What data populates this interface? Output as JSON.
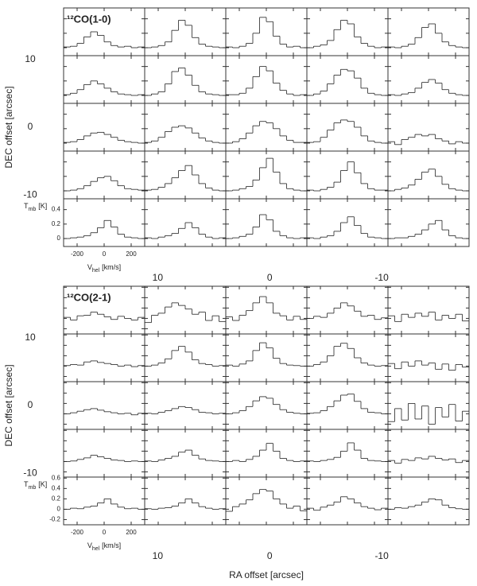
{
  "chart_data": [
    {
      "type": "spectra-grid",
      "label": "¹²CO(1-0)",
      "ylabel": "DEC offset [arcsec]",
      "color": "#222",
      "x": [
        -275,
        -225,
        -175,
        -125,
        -75,
        -25,
        25,
        75,
        125,
        175,
        225,
        275
      ],
      "xlim": [
        -300,
        300
      ],
      "xticks": [
        -200,
        0,
        200
      ],
      "ylim": [
        -0.11,
        0.55
      ],
      "yticks": [
        0,
        0.2,
        0.4
      ],
      "xunit": {
        "symbol": "V",
        "sub": "hel",
        "unit": "[km/s]"
      },
      "yunit": {
        "symbol": "T",
        "sub": "mb",
        "unit": "[K]"
      },
      "ra_lim": [
        18.4,
        -17.8
      ],
      "ra_ticks": [
        10,
        0,
        -10
      ],
      "dec_lim": [
        -17.6,
        17.6
      ],
      "dec_ticks": [
        10,
        0,
        -10
      ],
      "spectra": [
        [
          [
            0.01,
            0.02,
            0.06,
            0.15,
            0.22,
            0.17,
            0.08,
            0.03,
            0.01,
            0.02,
            0.0,
            0.01
          ],
          [
            0.0,
            0.01,
            0.03,
            0.08,
            0.24,
            0.38,
            0.31,
            0.14,
            0.05,
            0.02,
            0.01,
            0.0
          ],
          [
            0.01,
            0.0,
            0.02,
            0.06,
            0.2,
            0.42,
            0.36,
            0.16,
            0.05,
            0.01,
            0.02,
            0.0
          ],
          [
            0.0,
            0.02,
            0.04,
            0.1,
            0.25,
            0.38,
            0.33,
            0.15,
            0.06,
            0.02,
            0.0,
            0.01
          ],
          [
            0.01,
            0.0,
            0.02,
            0.05,
            0.14,
            0.28,
            0.33,
            0.2,
            0.08,
            0.03,
            0.01,
            0.0
          ]
        ],
        [
          [
            0.01,
            0.03,
            0.08,
            0.15,
            0.2,
            0.16,
            0.1,
            0.05,
            0.02,
            0.01,
            0.0,
            0.01
          ],
          [
            0.0,
            0.02,
            0.05,
            0.16,
            0.33,
            0.38,
            0.28,
            0.14,
            0.05,
            0.02,
            0.01,
            0.0
          ],
          [
            0.01,
            0.01,
            0.03,
            0.1,
            0.26,
            0.4,
            0.34,
            0.17,
            0.07,
            0.02,
            0.0,
            0.01
          ],
          [
            0.0,
            0.02,
            0.06,
            0.16,
            0.28,
            0.36,
            0.34,
            0.24,
            0.1,
            0.03,
            0.01,
            0.0
          ],
          [
            0.01,
            0.0,
            0.02,
            0.04,
            0.1,
            0.18,
            0.22,
            0.17,
            0.08,
            0.03,
            0.01,
            0.0
          ]
        ],
        [
          [
            0.01,
            0.02,
            0.05,
            0.1,
            0.14,
            0.15,
            0.12,
            0.08,
            0.04,
            0.02,
            0.01,
            0.0
          ],
          [
            0.01,
            0.03,
            0.08,
            0.16,
            0.22,
            0.24,
            0.21,
            0.14,
            0.07,
            0.03,
            0.01,
            0.0
          ],
          [
            0.0,
            0.02,
            0.06,
            0.14,
            0.24,
            0.3,
            0.28,
            0.2,
            0.1,
            0.04,
            0.01,
            0.01
          ],
          [
            0.01,
            0.02,
            0.08,
            0.18,
            0.28,
            0.32,
            0.3,
            0.22,
            0.1,
            0.03,
            0.01,
            0.0
          ],
          [
            0.02,
            -0.02,
            0.05,
            0.08,
            0.12,
            0.1,
            0.12,
            0.06,
            0.03,
            -0.01,
            0.02,
            0.0
          ]
        ],
        [
          [
            0.0,
            0.01,
            0.03,
            0.07,
            0.13,
            0.18,
            0.2,
            0.14,
            0.07,
            0.03,
            0.02,
            0.01
          ],
          [
            0.01,
            0.02,
            0.05,
            0.1,
            0.18,
            0.28,
            0.35,
            0.22,
            0.1,
            0.04,
            0.01,
            0.0
          ],
          [
            0.0,
            0.01,
            0.03,
            0.06,
            0.15,
            0.32,
            0.45,
            0.26,
            0.1,
            0.03,
            0.01,
            0.0
          ],
          [
            0.01,
            0.0,
            0.02,
            0.05,
            0.12,
            0.28,
            0.4,
            0.25,
            0.1,
            0.03,
            0.01,
            0.01
          ],
          [
            0.0,
            0.02,
            0.04,
            0.08,
            0.16,
            0.26,
            0.3,
            0.2,
            0.09,
            0.03,
            0.01,
            0.0
          ]
        ],
        [
          [
            0.0,
            0.01,
            0.02,
            0.04,
            0.08,
            0.15,
            0.25,
            0.16,
            0.06,
            0.02,
            0.01,
            0.0
          ],
          [
            0.01,
            0.0,
            0.02,
            0.04,
            0.07,
            0.14,
            0.22,
            0.15,
            0.06,
            0.02,
            0.0,
            0.01
          ],
          [
            0.0,
            0.01,
            0.03,
            0.06,
            0.16,
            0.33,
            0.26,
            0.1,
            0.04,
            0.01,
            0.0,
            0.01
          ],
          [
            0.01,
            0.0,
            0.02,
            0.04,
            0.1,
            0.22,
            0.3,
            0.18,
            0.07,
            0.02,
            0.01,
            0.0
          ],
          [
            0.0,
            0.01,
            0.01,
            0.03,
            0.06,
            0.12,
            0.2,
            0.25,
            0.12,
            0.04,
            0.01,
            0.0
          ]
        ]
      ]
    },
    {
      "type": "spectra-grid",
      "label": "¹²CO(2-1)",
      "ylabel": "DEC offset [arcsec]",
      "xlabel": "RA offset [arcsec]",
      "color": "#222",
      "x": [
        -275,
        -225,
        -175,
        -125,
        -75,
        -25,
        25,
        75,
        125,
        175,
        225,
        275
      ],
      "xlim": [
        -300,
        300
      ],
      "xticks": [
        -200,
        0,
        200
      ],
      "ylim": [
        -0.3,
        0.62
      ],
      "yticks": [
        -0.2,
        0,
        0.2,
        0.4,
        0.6
      ],
      "xunit": {
        "symbol": "V",
        "sub": "hel",
        "unit": "[km/s]"
      },
      "yunit": {
        "symbol": "T",
        "sub": "mb",
        "unit": "[K]"
      },
      "ra_lim": [
        18.4,
        -17.8
      ],
      "ra_ticks": [
        10,
        0,
        -10
      ],
      "dec_lim": [
        -17.6,
        17.6
      ],
      "dec_ticks": [
        10,
        0,
        -10
      ],
      "spectra": [
        [
          [
            0.02,
            -0.03,
            0.05,
            0.06,
            0.12,
            0.08,
            0.03,
            -0.02,
            0.04,
            0.0,
            -0.03,
            0.02
          ],
          [
            -0.08,
            0.06,
            0.1,
            0.22,
            0.3,
            0.25,
            0.18,
            0.08,
            0.12,
            -0.04,
            0.05,
            -0.06
          ],
          [
            0.03,
            -0.04,
            0.06,
            0.15,
            0.3,
            0.42,
            0.3,
            0.1,
            0.05,
            -0.03,
            0.04,
            -0.02
          ],
          [
            0.0,
            0.04,
            0.02,
            0.1,
            0.2,
            0.3,
            0.24,
            0.14,
            0.04,
            0.06,
            -0.02,
            0.01
          ],
          [
            0.05,
            -0.06,
            0.08,
            0.02,
            0.1,
            0.04,
            0.12,
            -0.03,
            0.06,
            0.0,
            0.08,
            -0.05
          ]
        ],
        [
          [
            0.01,
            0.03,
            0.02,
            0.08,
            0.1,
            0.07,
            0.05,
            0.03,
            0.0,
            0.02,
            -0.01,
            0.01
          ],
          [
            0.0,
            0.02,
            0.06,
            0.14,
            0.3,
            0.38,
            0.27,
            0.12,
            0.05,
            0.03,
            0.0,
            0.01
          ],
          [
            0.02,
            0.0,
            0.04,
            0.1,
            0.3,
            0.45,
            0.35,
            0.15,
            0.05,
            0.02,
            0.01,
            0.0
          ],
          [
            0.0,
            0.03,
            0.08,
            0.2,
            0.38,
            0.44,
            0.34,
            0.16,
            0.06,
            0.02,
            0.0,
            0.01
          ],
          [
            0.05,
            -0.05,
            0.08,
            0.0,
            0.1,
            0.02,
            0.06,
            -0.06,
            0.04,
            -0.08,
            0.03,
            -0.02
          ]
        ],
        [
          [
            0.0,
            0.02,
            0.05,
            0.08,
            0.1,
            0.07,
            0.04,
            0.02,
            0.0,
            0.01,
            -0.02,
            0.01
          ],
          [
            0.01,
            0.0,
            0.03,
            0.06,
            0.1,
            0.14,
            0.12,
            0.08,
            0.03,
            0.02,
            0.0,
            0.01
          ],
          [
            0.0,
            0.02,
            0.06,
            0.14,
            0.25,
            0.33,
            0.3,
            0.18,
            0.08,
            0.03,
            0.01,
            0.0
          ],
          [
            0.01,
            0.02,
            0.06,
            0.14,
            0.25,
            0.36,
            0.38,
            0.24,
            0.1,
            0.03,
            0.02,
            0.0
          ],
          [
            -0.15,
            0.1,
            -0.12,
            0.2,
            -0.1,
            0.15,
            -0.2,
            0.12,
            -0.06,
            0.18,
            -0.14,
            0.05
          ]
        ],
        [
          [
            0.0,
            0.01,
            0.04,
            0.07,
            0.12,
            0.09,
            0.06,
            0.03,
            0.02,
            0.0,
            0.01,
            0.0
          ],
          [
            0.01,
            0.0,
            0.03,
            0.06,
            0.1,
            0.18,
            0.22,
            0.12,
            0.05,
            0.02,
            0.01,
            0.0
          ],
          [
            0.0,
            0.02,
            0.0,
            0.04,
            0.1,
            0.22,
            0.35,
            0.2,
            0.06,
            0.02,
            0.0,
            0.01
          ],
          [
            0.01,
            0.0,
            0.02,
            0.04,
            0.08,
            0.2,
            0.36,
            0.22,
            0.06,
            0.02,
            0.01,
            0.0
          ],
          [
            0.02,
            -0.03,
            0.04,
            0.02,
            0.07,
            0.05,
            0.1,
            0.06,
            0.03,
            0.05,
            -0.02,
            0.02
          ]
        ],
        [
          [
            0.0,
            0.02,
            0.01,
            0.04,
            0.06,
            0.12,
            0.2,
            0.1,
            0.04,
            0.01,
            0.02,
            0.0
          ],
          [
            0.01,
            0.0,
            0.02,
            0.03,
            0.06,
            0.12,
            0.2,
            0.12,
            0.05,
            0.02,
            0.0,
            0.01
          ],
          [
            -0.04,
            0.05,
            0.1,
            0.18,
            0.3,
            0.38,
            0.35,
            0.2,
            0.1,
            0.02,
            0.06,
            -0.03
          ],
          [
            0.02,
            -0.02,
            0.04,
            0.08,
            0.14,
            0.24,
            0.2,
            0.12,
            0.05,
            0.02,
            -0.01,
            0.02
          ],
          [
            0.0,
            0.03,
            0.02,
            0.05,
            0.08,
            0.14,
            0.2,
            0.18,
            0.08,
            0.03,
            0.01,
            0.0
          ]
        ]
      ]
    }
  ]
}
